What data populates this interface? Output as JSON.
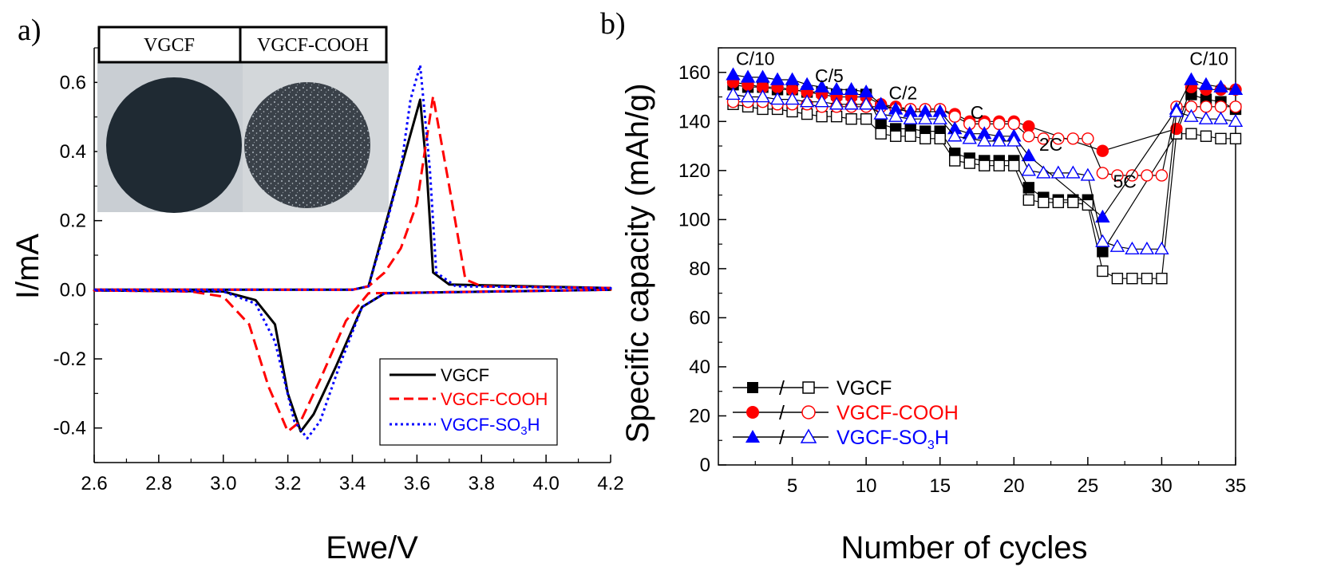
{
  "panel_a_label": "a)",
  "panel_b_label": "b)",
  "inset": {
    "label_left": "VGCF",
    "label_right": "VGCF-COOH"
  },
  "colors": {
    "VGCF": "#000000",
    "VGCF-COOH": "#ff0000",
    "VGCF-SO3H": "#0000ff"
  },
  "chart_data": [
    {
      "type": "line",
      "xlabel": "Ewe/V",
      "ylabel": "I/mA",
      "xlim": [
        2.6,
        4.2
      ],
      "ylim": [
        -0.5,
        0.7
      ],
      "xticks": [
        "2.6",
        "2.8",
        "3.0",
        "3.2",
        "3.4",
        "3.6",
        "3.8",
        "4.0",
        "4.2"
      ],
      "yticks": [
        "-0.4",
        "-0.2",
        "0.0",
        "0.2",
        "0.4",
        "0.6"
      ],
      "legend_position": "bottom-right",
      "series": [
        {
          "name": "VGCF",
          "line": "solid",
          "upper": [
            [
              2.6,
              0.0
            ],
            [
              3.4,
              0.0
            ],
            [
              3.45,
              0.01
            ],
            [
              3.5,
              0.18
            ],
            [
              3.55,
              0.35
            ],
            [
              3.58,
              0.45
            ],
            [
              3.61,
              0.55
            ],
            [
              3.63,
              0.35
            ],
            [
              3.65,
              0.05
            ],
            [
              3.7,
              0.015
            ],
            [
              4.2,
              0.005
            ]
          ],
          "lower": [
            [
              2.6,
              -0.002
            ],
            [
              3.0,
              -0.005
            ],
            [
              3.1,
              -0.03
            ],
            [
              3.16,
              -0.1
            ],
            [
              3.2,
              -0.3
            ],
            [
              3.24,
              -0.41
            ],
            [
              3.28,
              -0.36
            ],
            [
              3.35,
              -0.22
            ],
            [
              3.43,
              -0.05
            ],
            [
              3.5,
              -0.01
            ],
            [
              4.2,
              0.0
            ]
          ]
        },
        {
          "name": "VGCF-COOH",
          "line": "dashed",
          "upper": [
            [
              2.6,
              0.0
            ],
            [
              3.4,
              0.0
            ],
            [
              3.45,
              0.01
            ],
            [
              3.5,
              0.05
            ],
            [
              3.55,
              0.12
            ],
            [
              3.6,
              0.25
            ],
            [
              3.65,
              0.56
            ],
            [
              3.7,
              0.3
            ],
            [
              3.75,
              0.03
            ],
            [
              3.8,
              0.01
            ],
            [
              4.2,
              0.005
            ]
          ],
          "lower": [
            [
              2.6,
              -0.002
            ],
            [
              2.9,
              -0.005
            ],
            [
              3.0,
              -0.02
            ],
            [
              3.08,
              -0.1
            ],
            [
              3.14,
              -0.28
            ],
            [
              3.2,
              -0.41
            ],
            [
              3.24,
              -0.38
            ],
            [
              3.3,
              -0.26
            ],
            [
              3.38,
              -0.09
            ],
            [
              3.45,
              -0.01
            ],
            [
              4.2,
              0.0
            ]
          ]
        },
        {
          "name": "VGCF-SO3H",
          "line": "dotted",
          "upper": [
            [
              2.6,
              0.0
            ],
            [
              3.4,
              0.0
            ],
            [
              3.45,
              0.01
            ],
            [
              3.5,
              0.17
            ],
            [
              3.55,
              0.35
            ],
            [
              3.58,
              0.55
            ],
            [
              3.61,
              0.65
            ],
            [
              3.64,
              0.35
            ],
            [
              3.66,
              0.05
            ],
            [
              3.72,
              0.01
            ],
            [
              4.2,
              0.005
            ]
          ],
          "lower": [
            [
              2.6,
              -0.002
            ],
            [
              3.0,
              -0.005
            ],
            [
              3.1,
              -0.04
            ],
            [
              3.16,
              -0.15
            ],
            [
              3.22,
              -0.38
            ],
            [
              3.26,
              -0.43
            ],
            [
              3.3,
              -0.38
            ],
            [
              3.36,
              -0.22
            ],
            [
              3.43,
              -0.05
            ],
            [
              3.5,
              -0.01
            ],
            [
              4.2,
              0.0
            ]
          ]
        }
      ]
    },
    {
      "type": "scatter",
      "xlabel": "Number of cycles",
      "ylabel": "Specific capacity (mAh/g)",
      "xlim": [
        0,
        35
      ],
      "ylim": [
        0,
        170
      ],
      "xticks": [
        "5",
        "10",
        "15",
        "20",
        "25",
        "30",
        "35"
      ],
      "yticks": [
        "0",
        "20",
        "40",
        "60",
        "80",
        "100",
        "120",
        "140",
        "160"
      ],
      "legend_position": "bottom-left",
      "rate_labels": [
        {
          "text": "C/10",
          "x": 2.5,
          "y": 163
        },
        {
          "text": "C/5",
          "x": 7.5,
          "y": 156
        },
        {
          "text": "C/2",
          "x": 12.5,
          "y": 149
        },
        {
          "text": "C",
          "x": 17.5,
          "y": 141
        },
        {
          "text": "2C",
          "x": 22.5,
          "y": 128
        },
        {
          "text": "5C",
          "x": 27.5,
          "y": 113
        },
        {
          "text": "C/10",
          "x": 33.2,
          "y": 163
        }
      ],
      "legend_sep": "/",
      "x": [
        1,
        2,
        3,
        4,
        5,
        6,
        7,
        8,
        9,
        10,
        11,
        12,
        13,
        14,
        15,
        16,
        17,
        18,
        19,
        20,
        21,
        22,
        23,
        24,
        25,
        26,
        27,
        28,
        29,
        30,
        31,
        32,
        33,
        34,
        35
      ],
      "series": [
        {
          "name": "VGCF",
          "marker": "square",
          "filled": true,
          "values": [
            155,
            154,
            154,
            153,
            153,
            152,
            152,
            151,
            151,
            151,
            139,
            137,
            137,
            136,
            136,
            127,
            125,
            124,
            124,
            124,
            113,
            109,
            108,
            108,
            108,
            87,
            null,
            null,
            null,
            null,
            135,
            151,
            149,
            148,
            145
          ]
        },
        {
          "name": "VGCF",
          "marker": "square",
          "filled": false,
          "values": [
            147,
            146,
            145,
            145,
            144,
            143,
            142,
            142,
            141,
            141,
            135,
            134,
            134,
            133,
            133,
            124,
            123,
            122,
            122,
            122,
            108,
            107,
            107,
            107,
            106,
            79,
            76,
            76,
            76,
            76,
            135,
            135,
            134,
            133,
            133
          ]
        },
        {
          "name": "VGCF-COOH",
          "marker": "circle",
          "filled": true,
          "values": [
            156,
            155,
            154,
            154,
            153,
            152,
            151,
            150,
            150,
            150,
            147,
            146,
            145,
            145,
            145,
            143,
            140,
            140,
            140,
            140,
            138,
            null,
            null,
            null,
            null,
            128,
            null,
            null,
            null,
            null,
            137,
            154,
            153,
            153,
            153
          ]
        },
        {
          "name": "VGCF-COOH",
          "marker": "circle",
          "filled": false,
          "values": [
            148,
            148,
            148,
            147,
            147,
            147,
            146,
            146,
            146,
            146,
            146,
            145,
            145,
            145,
            145,
            142,
            139,
            139,
            139,
            139,
            134,
            133,
            133,
            133,
            133,
            119,
            118,
            118,
            118,
            118,
            146,
            146,
            146,
            146,
            146
          ]
        },
        {
          "name": "VGCF-SO3H",
          "marker": "triangle",
          "filled": true,
          "values": [
            159,
            158,
            158,
            157,
            157,
            155,
            154,
            153,
            153,
            152,
            147,
            145,
            144,
            144,
            144,
            137,
            135,
            135,
            134,
            134,
            126,
            null,
            null,
            null,
            null,
            101,
            null,
            null,
            null,
            null,
            145,
            157,
            155,
            154,
            153
          ]
        },
        {
          "name": "VGCF-SO3H",
          "marker": "triangle",
          "filled": false,
          "values": [
            151,
            150,
            150,
            149,
            149,
            148,
            148,
            147,
            147,
            147,
            143,
            142,
            141,
            141,
            141,
            134,
            133,
            132,
            132,
            132,
            120,
            119,
            119,
            119,
            118,
            91,
            89,
            88,
            88,
            88,
            144,
            142,
            141,
            141,
            140
          ]
        }
      ]
    }
  ]
}
